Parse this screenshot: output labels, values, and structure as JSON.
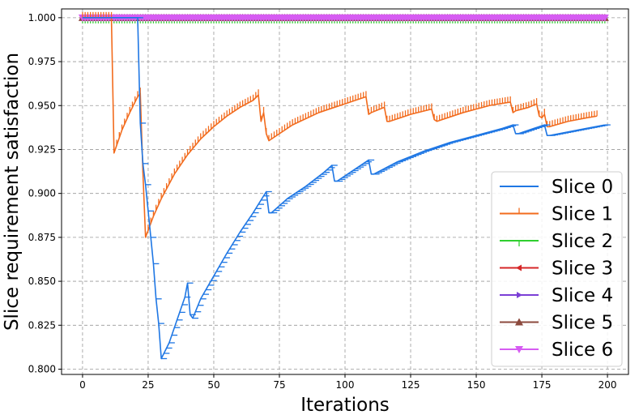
{
  "chart_data": {
    "type": "line",
    "title": "",
    "xlabel": "Iterations",
    "ylabel": "Slice requirement satisfaction",
    "xlim": [
      -8,
      208
    ],
    "ylim": [
      0.797,
      1.005
    ],
    "xticks": [
      0,
      25,
      50,
      75,
      100,
      125,
      150,
      175,
      200
    ],
    "yticks": [
      0.8,
      0.825,
      0.85,
      0.875,
      0.9,
      0.925,
      0.95,
      0.975,
      1.0
    ],
    "ytick_labels": [
      "0.800",
      "0.825",
      "0.850",
      "0.875",
      "0.900",
      "0.925",
      "0.950",
      "0.975",
      "1.000"
    ],
    "grid": true,
    "legend_position": "lower-right",
    "series": [
      {
        "name": "Slice 0",
        "color": "#1f77e4",
        "marker": "tickleft",
        "points": [
          [
            0,
            1.0
          ],
          [
            21,
            1.0
          ],
          [
            22,
            0.94
          ],
          [
            23,
            0.917
          ],
          [
            24,
            0.905
          ],
          [
            25,
            0.89
          ],
          [
            26,
            0.875
          ],
          [
            27,
            0.86
          ],
          [
            28,
            0.84
          ],
          [
            29,
            0.826
          ],
          [
            30,
            0.806
          ],
          [
            33,
            0.815
          ],
          [
            36,
            0.828
          ],
          [
            39,
            0.841
          ],
          [
            40,
            0.849
          ],
          [
            41,
            0.831
          ],
          [
            42,
            0.829
          ],
          [
            45,
            0.84
          ],
          [
            50,
            0.853
          ],
          [
            55,
            0.866
          ],
          [
            60,
            0.878
          ],
          [
            65,
            0.889
          ],
          [
            70,
            0.901
          ],
          [
            71,
            0.889
          ],
          [
            72,
            0.889
          ],
          [
            78,
            0.897
          ],
          [
            85,
            0.904
          ],
          [
            92,
            0.912
          ],
          [
            95,
            0.916
          ],
          [
            96,
            0.907
          ],
          [
            97,
            0.907
          ],
          [
            102,
            0.912
          ],
          [
            107,
            0.917
          ],
          [
            109,
            0.919
          ],
          [
            110,
            0.911
          ],
          [
            111,
            0.911
          ],
          [
            120,
            0.918
          ],
          [
            130,
            0.924
          ],
          [
            140,
            0.929
          ],
          [
            150,
            0.933
          ],
          [
            160,
            0.937
          ],
          [
            164,
            0.939
          ],
          [
            165,
            0.934
          ],
          [
            166,
            0.934
          ],
          [
            172,
            0.937
          ],
          [
            176,
            0.939
          ],
          [
            177,
            0.933
          ],
          [
            178,
            0.933
          ],
          [
            185,
            0.935
          ],
          [
            192,
            0.937
          ],
          [
            199,
            0.939
          ]
        ]
      },
      {
        "name": "Slice 1",
        "color": "#f26b1d",
        "marker": "tickup",
        "points": [
          [
            0,
            1.0
          ],
          [
            11,
            1.0
          ],
          [
            12,
            0.923
          ],
          [
            15,
            0.936
          ],
          [
            18,
            0.946
          ],
          [
            21,
            0.955
          ],
          [
            22,
            0.957
          ],
          [
            23,
            0.912
          ],
          [
            24,
            0.875
          ],
          [
            27,
            0.887
          ],
          [
            30,
            0.897
          ],
          [
            35,
            0.911
          ],
          [
            40,
            0.922
          ],
          [
            45,
            0.931
          ],
          [
            50,
            0.938
          ],
          [
            55,
            0.944
          ],
          [
            60,
            0.949
          ],
          [
            65,
            0.953
          ],
          [
            67,
            0.956
          ],
          [
            68,
            0.941
          ],
          [
            69,
            0.946
          ],
          [
            70,
            0.934
          ],
          [
            71,
            0.93
          ],
          [
            80,
            0.939
          ],
          [
            90,
            0.946
          ],
          [
            100,
            0.951
          ],
          [
            108,
            0.955
          ],
          [
            109,
            0.945
          ],
          [
            110,
            0.946
          ],
          [
            115,
            0.949
          ],
          [
            116,
            0.941
          ],
          [
            117,
            0.941
          ],
          [
            125,
            0.945
          ],
          [
            133,
            0.948
          ],
          [
            134,
            0.942
          ],
          [
            135,
            0.941
          ],
          [
            145,
            0.946
          ],
          [
            155,
            0.95
          ],
          [
            163,
            0.952
          ],
          [
            164,
            0.946
          ],
          [
            165,
            0.947
          ],
          [
            170,
            0.949
          ],
          [
            173,
            0.951
          ],
          [
            174,
            0.944
          ],
          [
            175,
            0.943
          ],
          [
            176,
            0.945
          ],
          [
            177,
            0.938
          ],
          [
            178,
            0.938
          ],
          [
            185,
            0.941
          ],
          [
            192,
            0.943
          ],
          [
            196,
            0.944
          ]
        ]
      },
      {
        "name": "Slice 2",
        "color": "#2fcf2f",
        "marker": "tickdown",
        "points": [
          [
            0,
            1.0
          ],
          [
            199,
            1.0
          ]
        ]
      },
      {
        "name": "Slice 3",
        "color": "#d62728",
        "marker": "caretleft",
        "points": [
          [
            0,
            1.0
          ],
          [
            199,
            1.0
          ]
        ]
      },
      {
        "name": "Slice 4",
        "color": "#7b3fd6",
        "marker": "caretright",
        "points": [
          [
            0,
            1.0
          ],
          [
            199,
            1.0
          ]
        ]
      },
      {
        "name": "Slice 5",
        "color": "#8c4a3e",
        "marker": "triangle-up",
        "points": [
          [
            0,
            1.0
          ],
          [
            199,
            1.0
          ]
        ]
      },
      {
        "name": "Slice 6",
        "color": "#d65cf2",
        "marker": "triangle-down",
        "points": [
          [
            0,
            1.0
          ],
          [
            199,
            1.0
          ]
        ]
      }
    ]
  }
}
